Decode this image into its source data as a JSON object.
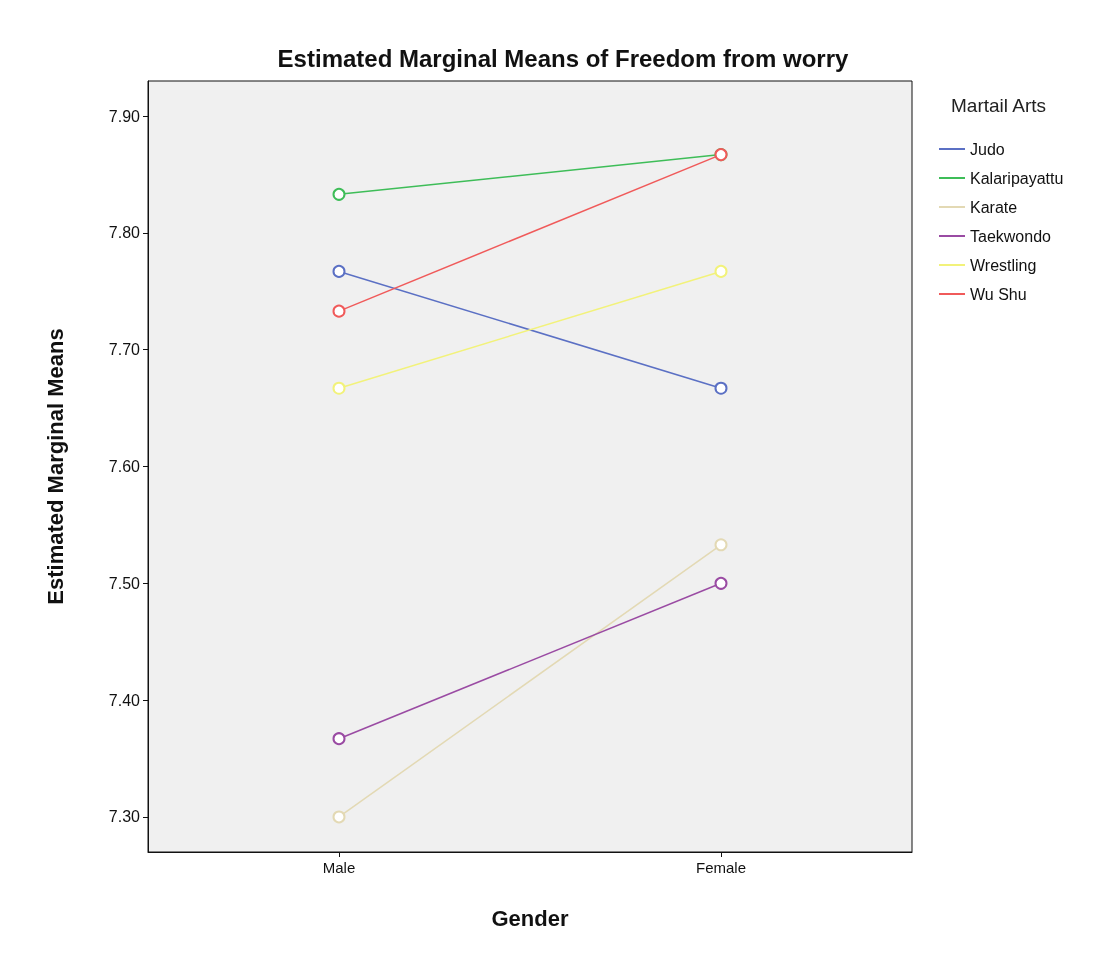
{
  "chart_data": {
    "type": "line",
    "title": "Estimated Marginal Means of Freedom from worry",
    "xlabel": "Gender",
    "ylabel": "Estimated Marginal Means",
    "legend_title": "Martail Arts",
    "categories": [
      "Male",
      "Female"
    ],
    "series": [
      {
        "name": "Judo",
        "color": "#5b70c4",
        "values": [
          7.767,
          7.667
        ]
      },
      {
        "name": "Kalaripayattu",
        "color": "#3ebd58",
        "values": [
          7.833,
          7.867
        ]
      },
      {
        "name": "Karate",
        "color": "#e3d9b4",
        "values": [
          7.3,
          7.533
        ]
      },
      {
        "name": "Taekwondo",
        "color": "#9a4ba3",
        "values": [
          7.367,
          7.5
        ]
      },
      {
        "name": "Wrestling",
        "color": "#f2f27a",
        "values": [
          7.667,
          7.767
        ]
      },
      {
        "name": "Wu Shu",
        "color": "#f05a5a",
        "values": [
          7.733,
          7.867
        ]
      }
    ],
    "ylim": [
      7.27,
      7.93
    ],
    "yticks": [
      {
        "value": 7.3,
        "label": "7.30"
      },
      {
        "value": 7.4,
        "label": "7.40"
      },
      {
        "value": 7.5,
        "label": "7.50"
      },
      {
        "value": 7.6,
        "label": "7.60"
      },
      {
        "value": 7.7,
        "label": "7.70"
      },
      {
        "value": 7.8,
        "label": "7.80"
      },
      {
        "value": 7.9,
        "label": "7.90"
      }
    ],
    "grid": false,
    "legend": "right",
    "marker": "circle",
    "line_style": "solid"
  }
}
